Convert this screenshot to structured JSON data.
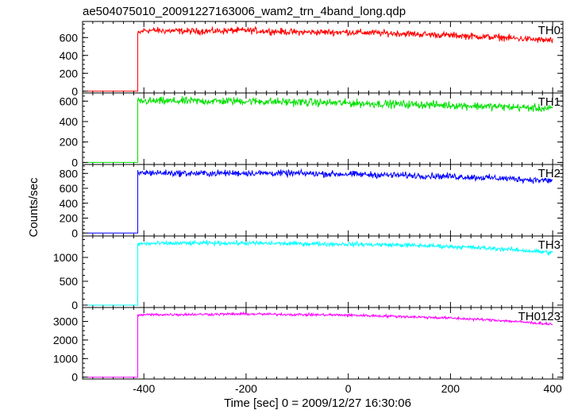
{
  "title": "ae504075010_20091227163006_wam2_trn_4band_long.qdp",
  "ylabel": "Counts/sec",
  "xlabel": "Time [sec] 0 = 2009/12/27 16:30:06",
  "chart_data": [
    {
      "type": "line",
      "name": "TH0",
      "color": "#ff0000",
      "xlim": [
        -520,
        420
      ],
      "ylim": [
        -20,
        780
      ],
      "yticks": [
        0,
        200,
        400,
        600
      ],
      "baseline": 0,
      "onset": -412,
      "x": [
        -412,
        -400,
        -300,
        -200,
        -100,
        0,
        100,
        200,
        300,
        400
      ],
      "values": [
        640,
        680,
        670,
        680,
        660,
        660,
        645,
        625,
        600,
        565
      ],
      "noise": 30
    },
    {
      "type": "line",
      "name": "TH1",
      "color": "#00e000",
      "xlim": [
        -520,
        420
      ],
      "ylim": [
        -20,
        680
      ],
      "yticks": [
        0,
        200,
        400,
        600
      ],
      "baseline": 0,
      "onset": -412,
      "x": [
        -412,
        -400,
        -300,
        -200,
        -100,
        0,
        100,
        200,
        300,
        400
      ],
      "values": [
        590,
        600,
        600,
        600,
        590,
        580,
        570,
        560,
        545,
        525
      ],
      "noise": 32
    },
    {
      "type": "line",
      "name": "TH2",
      "color": "#0000ff",
      "xlim": [
        -520,
        420
      ],
      "ylim": [
        -40,
        920
      ],
      "yticks": [
        0,
        200,
        400,
        600,
        800
      ],
      "baseline": 0,
      "onset": -412,
      "x": [
        -412,
        -400,
        -300,
        -200,
        -100,
        0,
        100,
        200,
        300,
        400
      ],
      "values": [
        800,
        810,
        800,
        805,
        800,
        790,
        775,
        760,
        735,
        700
      ],
      "noise": 35
    },
    {
      "type": "line",
      "name": "TH3",
      "color": "#00ffff",
      "xlim": [
        -520,
        420
      ],
      "ylim": [
        -50,
        1450
      ],
      "yticks": [
        0,
        500,
        1000
      ],
      "baseline": 0,
      "onset": -412,
      "x": [
        -412,
        -400,
        -300,
        -200,
        -100,
        0,
        100,
        200,
        300,
        400
      ],
      "values": [
        1280,
        1290,
        1300,
        1300,
        1290,
        1280,
        1260,
        1230,
        1180,
        1100
      ],
      "noise": 38
    },
    {
      "type": "line",
      "name": "TH0123",
      "color": "#ff00ff",
      "xlim": [
        -520,
        420
      ],
      "ylim": [
        -100,
        3750
      ],
      "yticks": [
        0,
        1000,
        2000,
        3000
      ],
      "baseline": 0,
      "onset": -412,
      "x": [
        -412,
        -400,
        -300,
        -200,
        -100,
        0,
        100,
        200,
        300,
        400
      ],
      "values": [
        3330,
        3360,
        3380,
        3400,
        3370,
        3340,
        3270,
        3180,
        3050,
        2850
      ],
      "noise": 60
    }
  ],
  "xticks": [
    -400,
    -200,
    0,
    200,
    400
  ],
  "xminor_step": 20
}
